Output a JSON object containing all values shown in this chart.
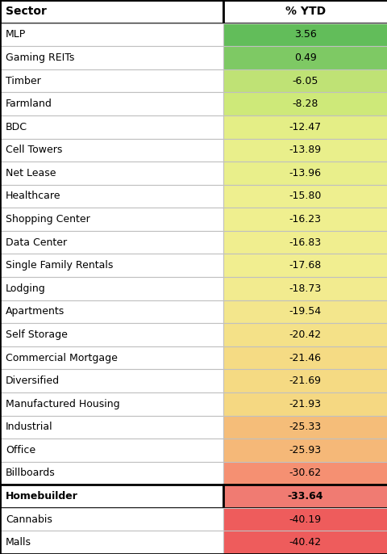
{
  "sectors": [
    "MLP",
    "Gaming REITs",
    "Timber",
    "Farmland",
    "BDC",
    "Cell Towers",
    "Net Lease",
    "Healthcare",
    "Shopping Center",
    "Data Center",
    "Single Family Rentals",
    "Lodging",
    "Apartments",
    "Self Storage",
    "Commercial Mortgage",
    "Diversified",
    "Manufactured Housing",
    "Industrial",
    "Office",
    "Billboards",
    "Homebuilder",
    "Cannabis",
    "Malls"
  ],
  "values": [
    3.56,
    0.49,
    -6.05,
    -8.28,
    -12.47,
    -13.89,
    -13.96,
    -15.8,
    -16.23,
    -16.83,
    -17.68,
    -18.73,
    -19.54,
    -20.42,
    -21.46,
    -21.69,
    -21.93,
    -25.33,
    -25.93,
    -30.62,
    -33.64,
    -40.19,
    -40.42
  ],
  "bold_rows": [
    20
  ],
  "col1_header": "Sector",
  "col2_header": "% YTD",
  "col_split": 0.575,
  "fig_width": 4.81,
  "fig_height": 6.86,
  "dpi": 100,
  "color_positive_top": "#5BBD5A",
  "color_zero": "#C8E88A",
  "color_mid": "#F5F5A0",
  "color_neg_mid": "#F5C97A",
  "color_neg_low": "#F5956A",
  "color_neg_bottom": "#F56060",
  "font_size_header": 10,
  "font_size_data": 9,
  "header_border_lw": 2.0,
  "data_border_lw": 0.8,
  "bold_border_lw": 2.0,
  "outer_border_lw": 2.0
}
